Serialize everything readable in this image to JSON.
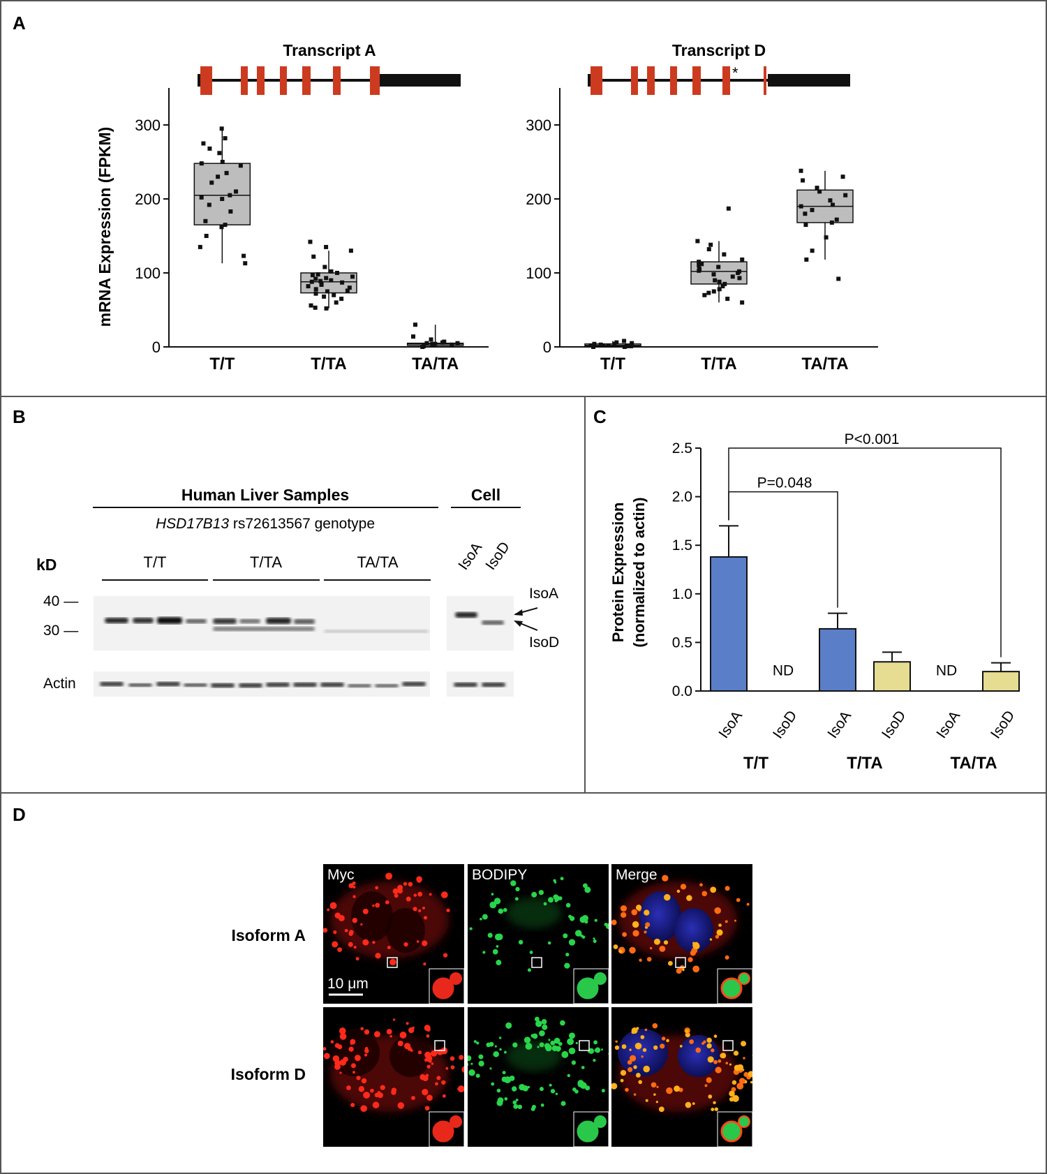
{
  "panels": {
    "A": {
      "label": "A"
    },
    "B": {
      "label": "B"
    },
    "C": {
      "label": "C"
    },
    "D": {
      "label": "D"
    }
  },
  "chart_data": [
    {
      "id": "A-left",
      "type": "box",
      "title": "Transcript A",
      "ylabel": "mRNA Expression (FPKM)",
      "ylim": [
        0,
        350
      ],
      "yticks": [
        0,
        100,
        200,
        300
      ],
      "categories": [
        "T/T",
        "T/TA",
        "TA/TA"
      ],
      "boxes": [
        {
          "category": "T/T",
          "min": 113,
          "q1": 165,
          "median": 205,
          "q3": 248,
          "max": 295,
          "points": [
            295,
            282,
            275,
            268,
            262,
            250,
            248,
            245,
            235,
            230,
            222,
            210,
            205,
            202,
            200,
            192,
            183,
            170,
            165,
            162,
            150,
            135,
            123,
            113
          ]
        },
        {
          "category": "T/TA",
          "min": 52,
          "q1": 73,
          "median": 88,
          "q3": 100,
          "max": 130,
          "points": [
            142,
            135,
            130,
            122,
            108,
            102,
            100,
            98,
            97,
            95,
            93,
            92,
            90,
            89,
            88,
            87,
            85,
            84,
            82,
            80,
            78,
            76,
            75,
            72,
            70,
            68,
            65,
            60,
            56,
            53,
            52
          ]
        },
        {
          "category": "TA/TA",
          "min": 0,
          "q1": 2,
          "median": 4,
          "q3": 5,
          "max": 30,
          "points": [
            30,
            14,
            10,
            7,
            6,
            5,
            5,
            4,
            4,
            3,
            3,
            2,
            2,
            1,
            0
          ]
        }
      ]
    },
    {
      "id": "A-right",
      "type": "box",
      "title": "Transcript D",
      "ylim": [
        0,
        350
      ],
      "yticks": [
        0,
        100,
        200,
        300
      ],
      "categories": [
        "T/T",
        "T/TA",
        "TA/TA"
      ],
      "boxes": [
        {
          "category": "T/T",
          "min": 0,
          "q1": 1,
          "median": 2,
          "q3": 4,
          "max": 8,
          "points": [
            8,
            6,
            5,
            4,
            4,
            3,
            3,
            2,
            2,
            2,
            1,
            1,
            0,
            0
          ]
        },
        {
          "category": "T/TA",
          "min": 60,
          "q1": 85,
          "median": 102,
          "q3": 115,
          "max": 143,
          "points": [
            187,
            143,
            138,
            132,
            125,
            118,
            115,
            112,
            110,
            108,
            105,
            103,
            102,
            100,
            98,
            95,
            93,
            90,
            88,
            85,
            82,
            78,
            75,
            73,
            70,
            65,
            60
          ]
        },
        {
          "category": "TA/TA",
          "min": 118,
          "q1": 168,
          "median": 190,
          "q3": 212,
          "max": 238,
          "points": [
            238,
            230,
            225,
            215,
            210,
            205,
            198,
            192,
            190,
            185,
            180,
            172,
            168,
            165,
            148,
            130,
            118,
            92
          ]
        }
      ]
    },
    {
      "id": "C",
      "type": "bar",
      "ylabel_line1": "Protein Expression",
      "ylabel_line2": "(normalized to actin)",
      "ylim": [
        0,
        2.5
      ],
      "yticks": [
        "0.0",
        "0.5",
        "1.0",
        "1.5",
        "2.0",
        "2.5"
      ],
      "bars": [
        {
          "label": "IsoA",
          "group": "T/T",
          "value": 1.38,
          "error": 0.32,
          "color": "#5b7ec9"
        },
        {
          "label": "IsoD",
          "group": "T/T",
          "value": 0,
          "nd": "ND"
        },
        {
          "label": "IsoA",
          "group": "T/TA",
          "value": 0.64,
          "error": 0.16,
          "color": "#5b7ec9"
        },
        {
          "label": "IsoD",
          "group": "T/TA",
          "value": 0.3,
          "error": 0.1,
          "color": "#e6dd92"
        },
        {
          "label": "IsoA",
          "group": "TA/TA",
          "value": 0,
          "nd": "ND"
        },
        {
          "label": "IsoD",
          "group": "TA/TA",
          "value": 0.2,
          "error": 0.09,
          "color": "#e6dd92"
        }
      ],
      "groups": [
        "T/T",
        "T/TA",
        "TA/TA"
      ],
      "annotations": [
        {
          "text": "P=0.048",
          "from": 0,
          "to": 2,
          "level": 2.05
        },
        {
          "text": "P<0.001",
          "from": 0,
          "to": 5,
          "level": 2.5
        }
      ]
    }
  ],
  "western": {
    "group_header": "Human Liver Samples",
    "genotype_gene": "HSD17B13",
    "genotype_rest": " rs72613567 genotype",
    "cell_header": "Cell",
    "kd_label": "kD",
    "genotypes": [
      "T/T",
      "T/TA",
      "TA/TA"
    ],
    "cell_lanes": [
      "IsoA",
      "IsoD"
    ],
    "markers": [
      "40 —",
      "30 —"
    ],
    "arrow_labels": [
      "IsoA",
      "IsoD"
    ],
    "actin_label": "Actin"
  },
  "microscopy": {
    "columns": [
      "Myc",
      "BODIPY",
      "Merge"
    ],
    "rows": [
      "Isoform A",
      "Isoform D"
    ],
    "scale_bar": "10 μm"
  }
}
